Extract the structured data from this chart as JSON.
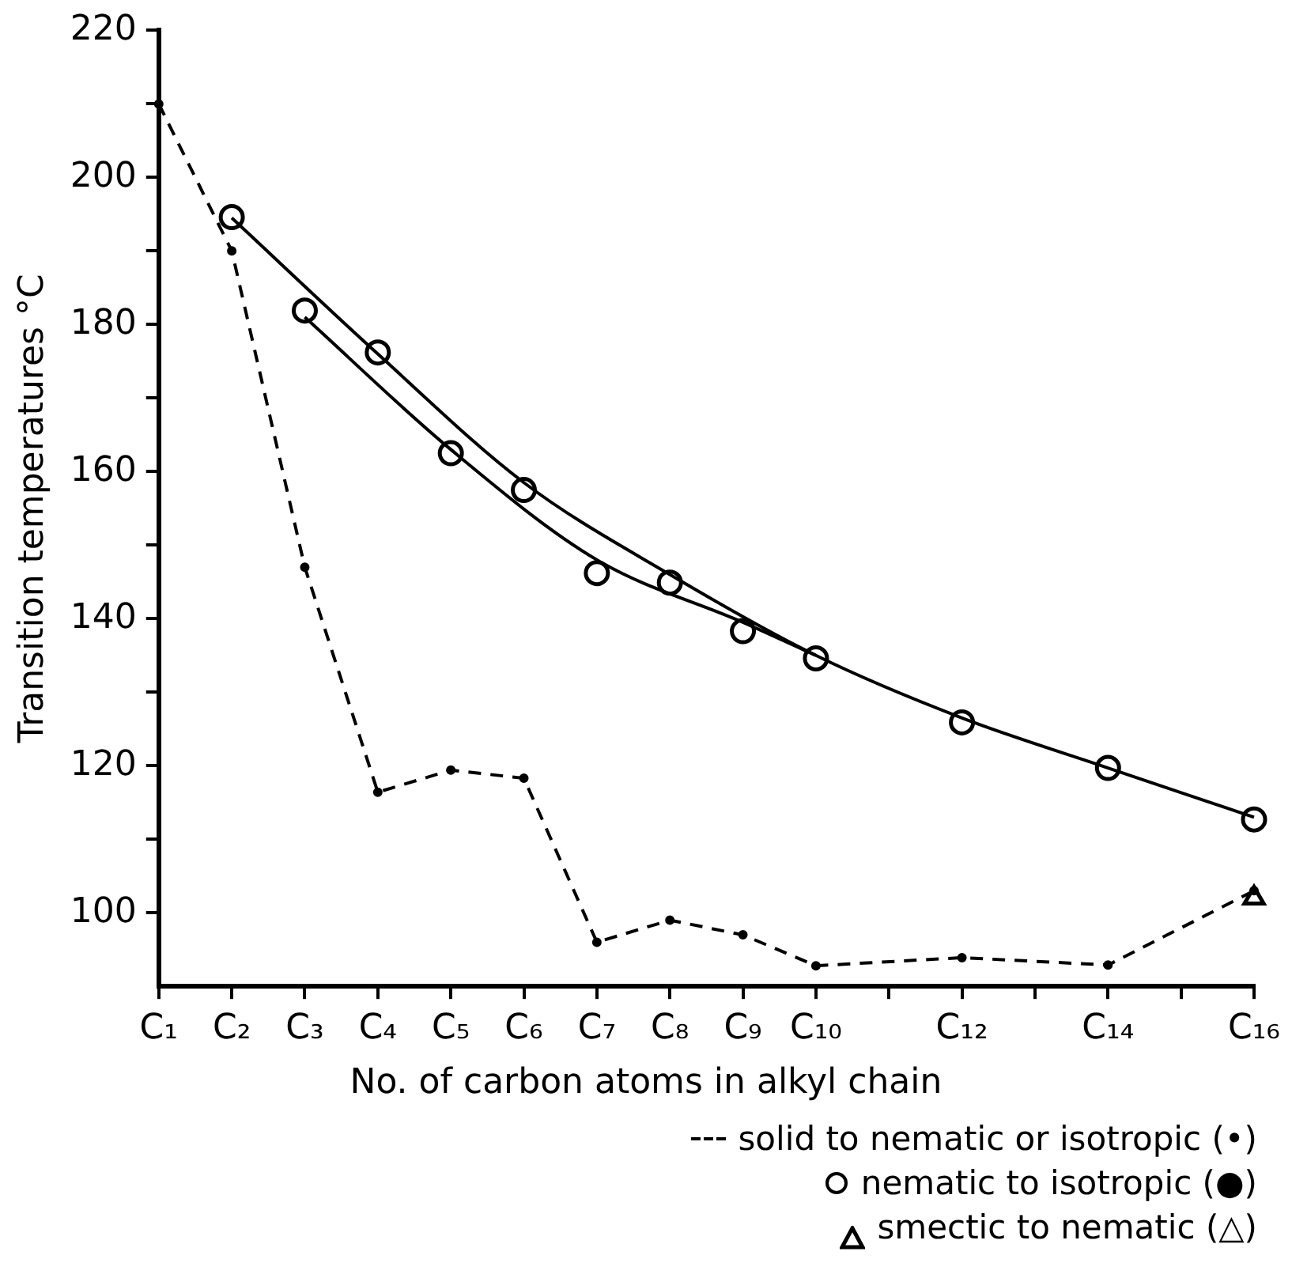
{
  "chart_data": {
    "type": "line",
    "xlabel": "No. of carbon atoms in alkyl chain",
    "ylabel": "Transition temperatures °C",
    "ylim": [
      90,
      220
    ],
    "categories": [
      "C₁",
      "C₂",
      "C₃",
      "C₄",
      "C₅",
      "C₆",
      "C₇",
      "C₈",
      "C₉",
      "C₁₀",
      null,
      "C₁₂",
      null,
      "C₁₄",
      null,
      "C₁₆"
    ],
    "yticks": [
      100,
      {
        "value": 110,
        "label": null
      },
      120,
      {
        "value": 130,
        "label": null
      },
      140,
      {
        "value": 150,
        "label": null
      },
      160,
      {
        "value": 170,
        "label": null
      },
      180,
      {
        "value": 190,
        "label": null
      },
      200,
      {
        "value": 210,
        "label": null
      },
      220
    ],
    "grid": false,
    "legend": "bottom",
    "series": [
      {
        "name": "solid to nematic or isotropic (•)",
        "type": "line",
        "color": "#000000",
        "line_style": "dashed",
        "marker": "circle",
        "values": [
          210,
          190,
          147,
          116.4,
          119.4,
          118.3,
          96,
          99,
          97,
          92.8,
          null,
          93.9,
          null,
          92.9,
          null,
          103
        ]
      },
      {
        "name": "nematic to isotropic (●)",
        "type": "scatter",
        "color": "#000000",
        "marker": "circle",
        "values": [
          null,
          194.6,
          181.9,
          176.2,
          162.5,
          157.5,
          146.2,
          144.9,
          138.3,
          134.6,
          null,
          125.9,
          null,
          119.7,
          null,
          112.7
        ]
      },
      {
        "name": "smectic to nematic (△)",
        "type": "scatter",
        "color": "#000000",
        "marker": "triangle",
        "values": [
          null,
          null,
          null,
          null,
          null,
          null,
          null,
          null,
          null,
          null,
          null,
          null,
          null,
          null,
          null,
          102
        ]
      },
      {
        "type": "line",
        "color": "#000000",
        "line_style": "solid",
        "marker": "none",
        "values": [
          null,
          194.5,
          null,
          176,
          null,
          158.5,
          null,
          146,
          null,
          135,
          null,
          126.5,
          null,
          119.7,
          null,
          113
        ]
      },
      {
        "type": "line",
        "color": "#000000",
        "line_style": "solid",
        "marker": "none",
        "values": [
          null,
          null,
          181,
          null,
          163,
          null,
          148,
          null,
          139.5,
          135,
          null,
          null,
          null,
          null,
          null,
          null
        ]
      }
    ]
  }
}
